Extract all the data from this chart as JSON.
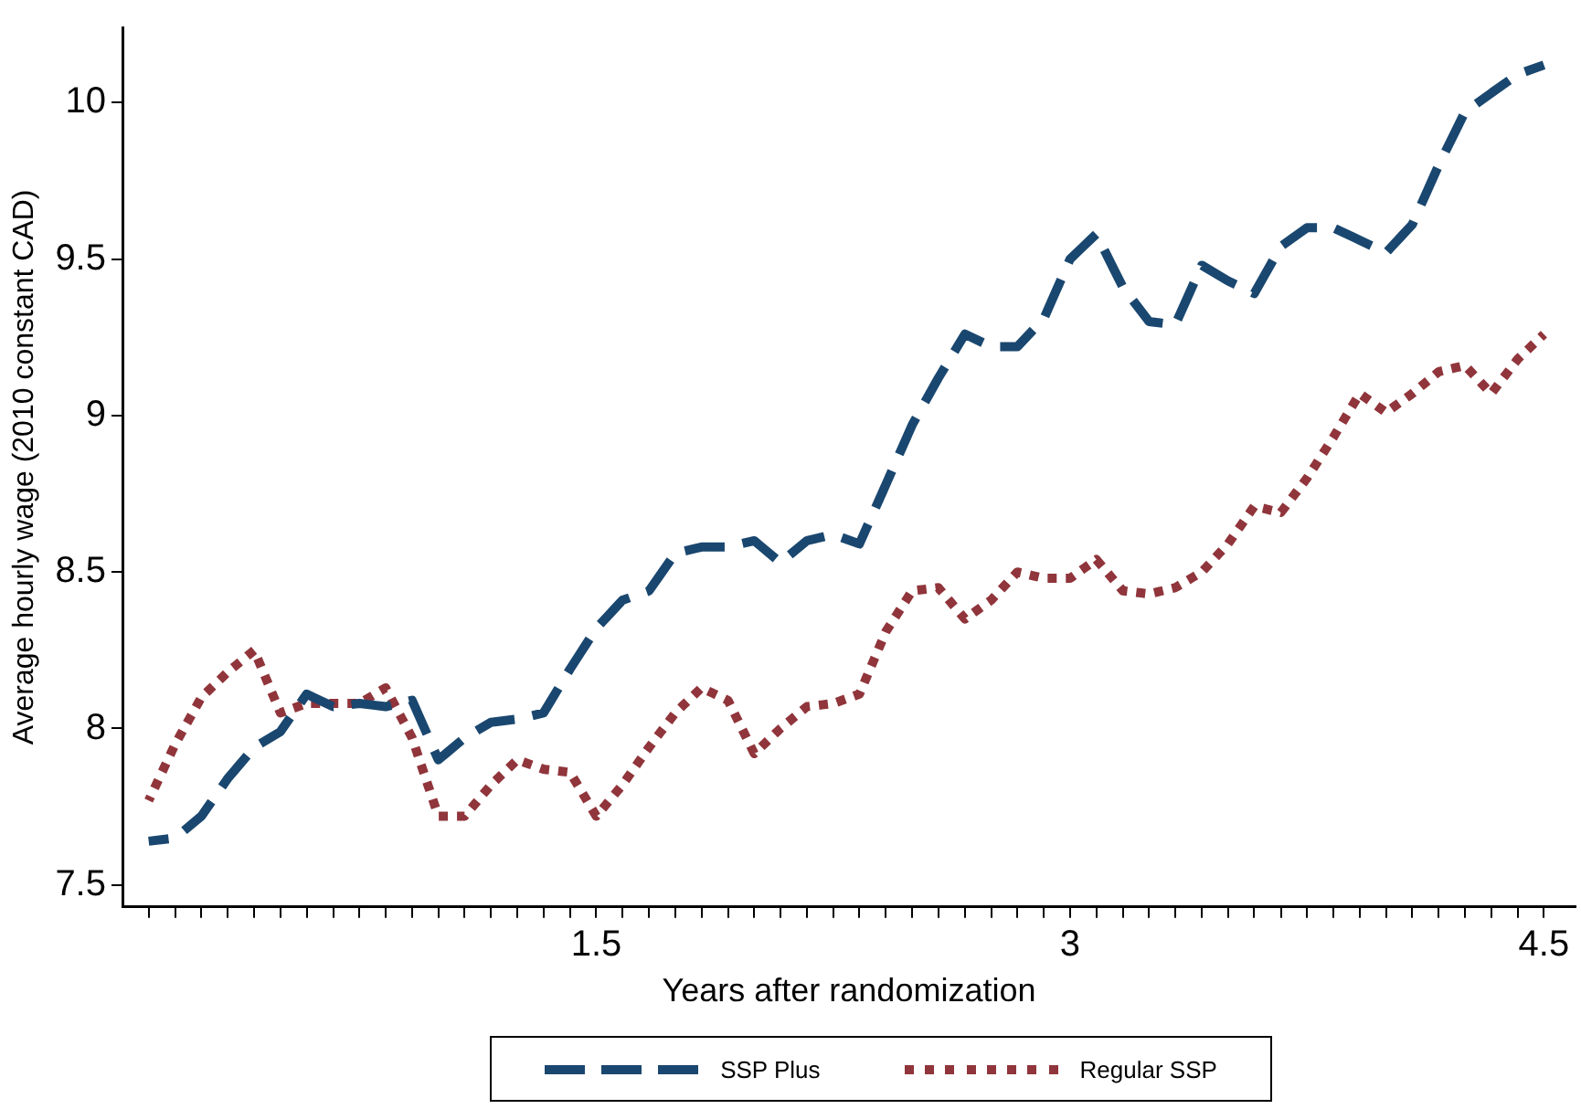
{
  "chart_data": {
    "type": "line",
    "xlabel": "Years after randomization",
    "ylabel": "Average hourly wage (2010 constant CAD)",
    "x": [
      0.083,
      0.167,
      0.25,
      0.333,
      0.417,
      0.5,
      0.583,
      0.667,
      0.75,
      0.833,
      0.917,
      1.0,
      1.083,
      1.167,
      1.25,
      1.333,
      1.417,
      1.5,
      1.583,
      1.667,
      1.75,
      1.833,
      1.917,
      2.0,
      2.083,
      2.167,
      2.25,
      2.333,
      2.417,
      2.5,
      2.583,
      2.667,
      2.75,
      2.833,
      2.917,
      3.0,
      3.083,
      3.167,
      3.25,
      3.333,
      3.417,
      3.5,
      3.583,
      3.667,
      3.75,
      3.833,
      3.917,
      4.0,
      4.083,
      4.167,
      4.25,
      4.333,
      4.417,
      4.5
    ],
    "series": [
      {
        "name": "SSP Plus",
        "color": "#1a476f",
        "line_style": "dashed",
        "values": [
          7.64,
          7.65,
          7.72,
          7.84,
          7.94,
          7.99,
          8.11,
          8.07,
          8.08,
          8.07,
          8.09,
          7.9,
          7.97,
          8.02,
          8.03,
          8.05,
          8.19,
          8.32,
          8.41,
          8.44,
          8.56,
          8.58,
          8.58,
          8.6,
          8.53,
          8.6,
          8.62,
          8.59,
          8.78,
          8.97,
          9.12,
          9.26,
          9.22,
          9.22,
          9.31,
          9.5,
          9.58,
          9.41,
          9.3,
          9.29,
          9.48,
          9.43,
          9.39,
          9.54,
          9.6,
          9.6,
          9.56,
          9.52,
          9.61,
          9.8,
          9.97,
          10.03,
          10.09,
          10.12
        ]
      },
      {
        "name": "Regular SSP",
        "color": "#90353b",
        "line_style": "dotted",
        "values": [
          7.77,
          7.95,
          8.1,
          8.18,
          8.25,
          8.05,
          8.08,
          8.08,
          8.08,
          8.13,
          7.97,
          7.72,
          7.72,
          7.82,
          7.9,
          7.87,
          7.86,
          7.72,
          7.82,
          7.94,
          8.05,
          8.13,
          8.09,
          7.92,
          8.0,
          8.07,
          8.08,
          8.11,
          8.31,
          8.44,
          8.45,
          8.35,
          8.41,
          8.5,
          8.48,
          8.48,
          8.54,
          8.44,
          8.43,
          8.45,
          8.5,
          8.59,
          8.71,
          8.69,
          8.8,
          8.93,
          9.07,
          9.01,
          9.07,
          9.14,
          9.16,
          9.07,
          9.18,
          9.26
        ]
      }
    ],
    "xlim": [
      0,
      4.6
    ],
    "xticks": [
      {
        "value": 0.083,
        "label": null
      },
      {
        "value": 0.167,
        "label": null
      },
      {
        "value": 0.25,
        "label": null
      },
      {
        "value": 0.333,
        "label": null
      },
      {
        "value": 0.417,
        "label": null
      },
      {
        "value": 0.5,
        "label": null
      },
      {
        "value": 0.583,
        "label": null
      },
      {
        "value": 0.667,
        "label": null
      },
      {
        "value": 0.75,
        "label": null
      },
      {
        "value": 0.833,
        "label": null
      },
      {
        "value": 0.917,
        "label": null
      },
      {
        "value": 1.0,
        "label": null
      },
      {
        "value": 1.083,
        "label": null
      },
      {
        "value": 1.167,
        "label": null
      },
      {
        "value": 1.25,
        "label": null
      },
      {
        "value": 1.333,
        "label": null
      },
      {
        "value": 1.417,
        "label": null
      },
      1.5,
      {
        "value": 1.583,
        "label": null
      },
      {
        "value": 1.667,
        "label": null
      },
      {
        "value": 1.75,
        "label": null
      },
      {
        "value": 1.833,
        "label": null
      },
      {
        "value": 1.917,
        "label": null
      },
      {
        "value": 2.0,
        "label": null
      },
      {
        "value": 2.083,
        "label": null
      },
      {
        "value": 2.167,
        "label": null
      },
      {
        "value": 2.25,
        "label": null
      },
      {
        "value": 2.333,
        "label": null
      },
      {
        "value": 2.417,
        "label": null
      },
      {
        "value": 2.5,
        "label": null
      },
      {
        "value": 2.583,
        "label": null
      },
      {
        "value": 2.667,
        "label": null
      },
      {
        "value": 2.75,
        "label": null
      },
      {
        "value": 2.833,
        "label": null
      },
      {
        "value": 2.917,
        "label": null
      },
      3,
      {
        "value": 3.083,
        "label": null
      },
      {
        "value": 3.167,
        "label": null
      },
      {
        "value": 3.25,
        "label": null
      },
      {
        "value": 3.333,
        "label": null
      },
      {
        "value": 3.417,
        "label": null
      },
      {
        "value": 3.5,
        "label": null
      },
      {
        "value": 3.583,
        "label": null
      },
      {
        "value": 3.667,
        "label": null
      },
      {
        "value": 3.75,
        "label": null
      },
      {
        "value": 3.833,
        "label": null
      },
      {
        "value": 3.917,
        "label": null
      },
      {
        "value": 4.0,
        "label": null
      },
      {
        "value": 4.083,
        "label": null
      },
      {
        "value": 4.167,
        "label": null
      },
      {
        "value": 4.25,
        "label": null
      },
      {
        "value": 4.333,
        "label": null
      },
      {
        "value": 4.417,
        "label": null
      },
      4.5
    ],
    "ylim": [
      7.43,
      10.24
    ],
    "yticks": [
      7.5,
      8,
      8.5,
      9,
      9.5,
      10
    ],
    "grid": false,
    "legend": "bottom",
    "marker": "none"
  }
}
